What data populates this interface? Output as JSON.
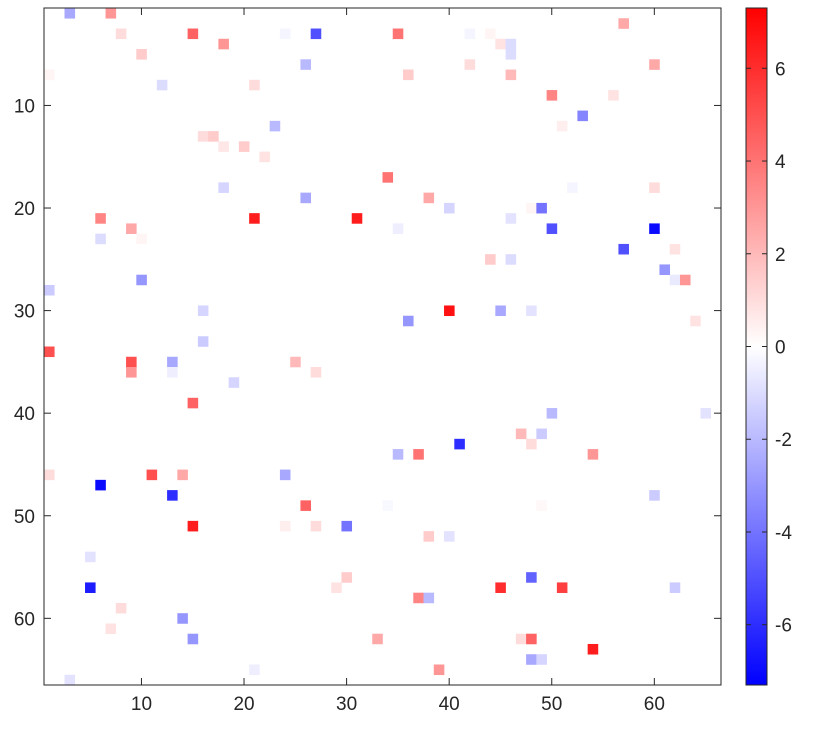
{
  "chart_data": {
    "type": "heatmap",
    "title": "",
    "xlabel": "",
    "ylabel": "",
    "xlim": [
      0.5,
      66.5
    ],
    "ylim": [
      0.5,
      66.5
    ],
    "y_reversed": true,
    "grid": false,
    "x_ticks": [
      10,
      20,
      30,
      40,
      50,
      60
    ],
    "y_ticks": [
      10,
      20,
      30,
      40,
      50,
      60
    ],
    "colorbar": {
      "range": [
        -7.3,
        7.3
      ],
      "ticks": [
        -6,
        -4,
        -2,
        0,
        2,
        4,
        6
      ],
      "colormap": [
        "#0000ff",
        "#ffffff",
        "#ff0000"
      ]
    },
    "cells": [
      [
        3,
        1,
        -2.5
      ],
      [
        7,
        1,
        3.0
      ],
      [
        8,
        3,
        1.0
      ],
      [
        15,
        3,
        4.5
      ],
      [
        18,
        4,
        3.0
      ],
      [
        24,
        3,
        -0.3
      ],
      [
        27,
        3,
        -5.0
      ],
      [
        35,
        3,
        4.0
      ],
      [
        42,
        3,
        -0.3
      ],
      [
        44,
        3,
        0.3
      ],
      [
        45,
        4,
        0.8
      ],
      [
        46,
        4,
        -1.0
      ],
      [
        46,
        5,
        -1.0
      ],
      [
        57,
        2,
        2.5
      ],
      [
        10,
        5,
        1.5
      ],
      [
        26,
        6,
        -2.0
      ],
      [
        42,
        6,
        1.0
      ],
      [
        60,
        6,
        2.5
      ],
      [
        1,
        7,
        0.3
      ],
      [
        36,
        7,
        1.5
      ],
      [
        46,
        7,
        2.0
      ],
      [
        21,
        8,
        1.0
      ],
      [
        12,
        8,
        -1.0
      ],
      [
        50,
        9,
        3.5
      ],
      [
        56,
        9,
        0.8
      ],
      [
        53,
        11,
        -3.5
      ],
      [
        23,
        12,
        -2.0
      ],
      [
        51,
        12,
        0.5
      ],
      [
        16,
        13,
        1.0
      ],
      [
        17,
        13,
        1.5
      ],
      [
        18,
        14,
        0.7
      ],
      [
        20,
        14,
        1.5
      ],
      [
        22,
        15,
        0.8
      ],
      [
        34,
        17,
        4.0
      ],
      [
        18,
        18,
        -1.2
      ],
      [
        52,
        18,
        -0.3
      ],
      [
        60,
        18,
        1.0
      ],
      [
        26,
        19,
        -2.5
      ],
      [
        38,
        19,
        2.5
      ],
      [
        40,
        20,
        -1.2
      ],
      [
        48,
        20,
        0.3
      ],
      [
        49,
        20,
        -4.0
      ],
      [
        6,
        21,
        3.5
      ],
      [
        21,
        21,
        6.5
      ],
      [
        31,
        21,
        6.5
      ],
      [
        46,
        21,
        -0.8
      ],
      [
        9,
        22,
        2.5
      ],
      [
        35,
        22,
        -0.5
      ],
      [
        50,
        22,
        -5.0
      ],
      [
        60,
        22,
        -7.0
      ],
      [
        6,
        23,
        -1.0
      ],
      [
        10,
        23,
        0.3
      ],
      [
        62,
        24,
        0.8
      ],
      [
        57,
        24,
        -5.0
      ],
      [
        44,
        25,
        1.5
      ],
      [
        46,
        25,
        -1.0
      ],
      [
        61,
        26,
        -3.0
      ],
      [
        10,
        27,
        -3.0
      ],
      [
        62,
        27,
        -0.6
      ],
      [
        63,
        27,
        3.0
      ],
      [
        1,
        28,
        -1.5
      ],
      [
        16,
        30,
        -1.2
      ],
      [
        40,
        30,
        6.8
      ],
      [
        45,
        30,
        -2.5
      ],
      [
        48,
        30,
        -0.8
      ],
      [
        36,
        31,
        -3.0
      ],
      [
        64,
        31,
        0.8
      ],
      [
        16,
        33,
        -1.5
      ],
      [
        1,
        34,
        5.0
      ],
      [
        9,
        35,
        5.0
      ],
      [
        13,
        35,
        -2.5
      ],
      [
        25,
        35,
        2.0
      ],
      [
        9,
        36,
        3.0
      ],
      [
        13,
        36,
        -0.5
      ],
      [
        27,
        36,
        1.0
      ],
      [
        19,
        37,
        -1.2
      ],
      [
        15,
        39,
        4.5
      ],
      [
        50,
        40,
        -2.0
      ],
      [
        65,
        40,
        -0.8
      ],
      [
        47,
        42,
        2.0
      ],
      [
        49,
        42,
        -1.5
      ],
      [
        48,
        43,
        1.0
      ],
      [
        41,
        43,
        -6.0
      ],
      [
        35,
        44,
        -2.0
      ],
      [
        37,
        44,
        4.0
      ],
      [
        54,
        44,
        3.0
      ],
      [
        1,
        46,
        1.0
      ],
      [
        11,
        46,
        5.0
      ],
      [
        14,
        46,
        2.5
      ],
      [
        24,
        46,
        -2.5
      ],
      [
        6,
        47,
        -7.0
      ],
      [
        13,
        48,
        -6.0
      ],
      [
        60,
        48,
        -1.5
      ],
      [
        26,
        49,
        4.5
      ],
      [
        34,
        49,
        -0.2
      ],
      [
        49,
        49,
        0.2
      ],
      [
        15,
        51,
        6.5
      ],
      [
        24,
        51,
        0.5
      ],
      [
        27,
        51,
        1.0
      ],
      [
        30,
        51,
        -4.0
      ],
      [
        38,
        52,
        1.5
      ],
      [
        40,
        52,
        -0.8
      ],
      [
        5,
        54,
        -0.8
      ],
      [
        30,
        56,
        1.5
      ],
      [
        48,
        56,
        -4.5
      ],
      [
        29,
        57,
        0.8
      ],
      [
        45,
        57,
        6.0
      ],
      [
        51,
        57,
        5.5
      ],
      [
        62,
        57,
        -1.5
      ],
      [
        5,
        57,
        -6.5
      ],
      [
        37,
        58,
        3.5
      ],
      [
        38,
        58,
        -2.0
      ],
      [
        8,
        59,
        1.0
      ],
      [
        14,
        60,
        -3.0
      ],
      [
        7,
        61,
        0.8
      ],
      [
        15,
        62,
        -3.0
      ],
      [
        33,
        62,
        2.5
      ],
      [
        47,
        62,
        1.0
      ],
      [
        48,
        62,
        4.5
      ],
      [
        54,
        63,
        6.5
      ],
      [
        48,
        64,
        -2.5
      ],
      [
        49,
        64,
        -1.2
      ],
      [
        21,
        65,
        -0.5
      ],
      [
        39,
        65,
        3.0
      ],
      [
        3,
        66,
        -0.8
      ]
    ]
  }
}
